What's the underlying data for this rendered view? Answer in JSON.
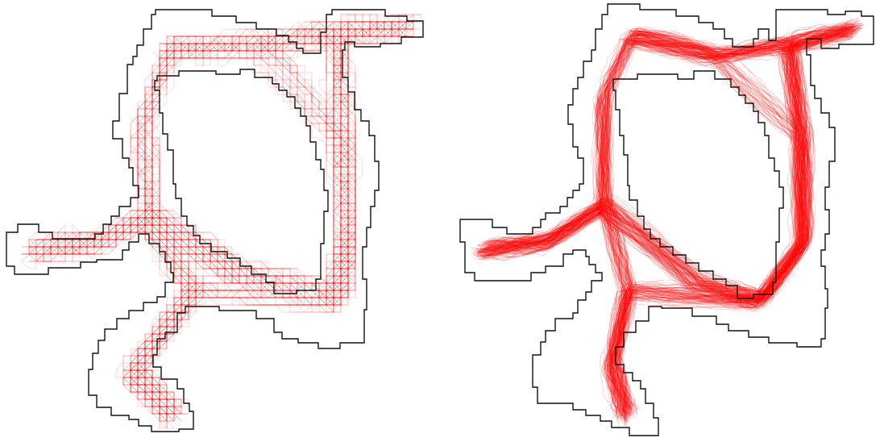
{
  "figure": {
    "panels": [
      {
        "id": "left",
        "trajectory_style": "grid-aligned"
      },
      {
        "id": "right",
        "trajectory_style": "smooth"
      }
    ],
    "colors": {
      "background": "#ffffff",
      "map_outline": "#111111",
      "trajectory": "#ff0000"
    }
  }
}
